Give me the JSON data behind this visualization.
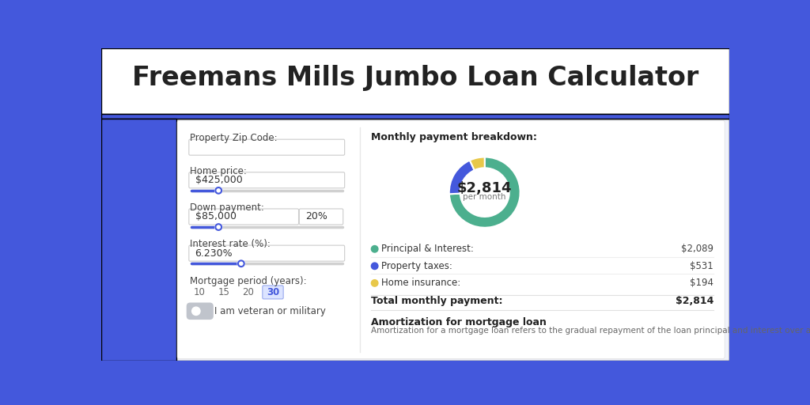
{
  "title": "Freemans Mills Jumbo Loan Calculator",
  "title_color": "#222222",
  "header_bg": "#4458dc",
  "body_bg": "#f0f2fa",
  "card_bg": "#ffffff",
  "left_panel": {
    "zip_label": "Property Zip Code:",
    "home_price_label": "Home price:",
    "home_price_value": "$425,000",
    "down_payment_label": "Down payment:",
    "down_payment_value": "$85,000",
    "down_payment_pct": "20%",
    "interest_label": "Interest rate (%):",
    "interest_value": "6.230%",
    "period_label": "Mortgage period (years):",
    "period_options": [
      "10",
      "15",
      "20",
      "30"
    ],
    "period_selected": "30",
    "veteran_label": "I am veteran or military"
  },
  "right_panel": {
    "breakdown_title": "Monthly payment breakdown:",
    "donut_total": "$2,814",
    "donut_sub": "per month",
    "principal_label": "Principal & Interest:",
    "principal_value": "$2,089",
    "principal_color": "#4caf8e",
    "taxes_label": "Property taxes:",
    "taxes_value": "$531",
    "taxes_color": "#4458dc",
    "insurance_label": "Home insurance:",
    "insurance_value": "$194",
    "insurance_color": "#e8c84a",
    "total_label": "Total monthly payment:",
    "total_value": "$2,814",
    "amort_title": "Amortization for mortgage loan",
    "amort_desc": "Amortization for a mortgage loan refers to the gradual repayment of the loan principal and interest over a specified"
  },
  "donut_values": [
    2089,
    531,
    194
  ],
  "donut_colors": [
    "#4caf8e",
    "#4458dc",
    "#e8c84a"
  ]
}
